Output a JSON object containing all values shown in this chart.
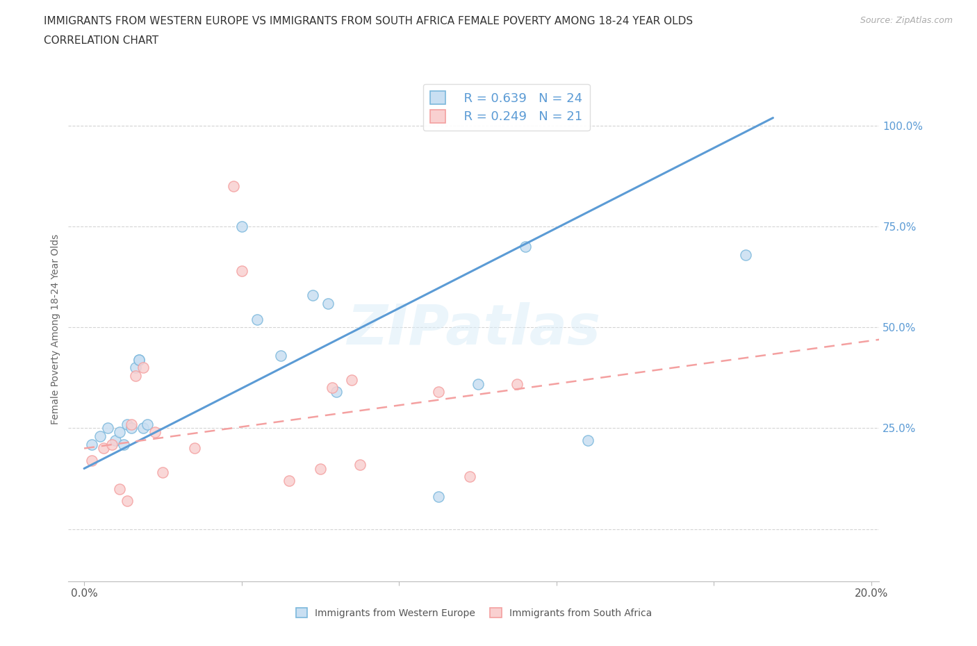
{
  "title_line1": "IMMIGRANTS FROM WESTERN EUROPE VS IMMIGRANTS FROM SOUTH AFRICA FEMALE POVERTY AMONG 18-24 YEAR OLDS",
  "title_line2": "CORRELATION CHART",
  "source": "Source: ZipAtlas.com",
  "ylabel": "Female Poverty Among 18-24 Year Olds",
  "watermark": "ZIPatlas",
  "legend_r1": "R = 0.639",
  "legend_n1": "N = 24",
  "legend_r2": "R = 0.249",
  "legend_n2": "N = 21",
  "xlim": [
    -0.004,
    0.202
  ],
  "ylim": [
    -0.13,
    1.12
  ],
  "xticks": [
    0.0,
    0.04,
    0.08,
    0.12,
    0.16,
    0.2
  ],
  "xticklabels": [
    "0.0%",
    "",
    "",
    "",
    "",
    "20.0%"
  ],
  "yticks": [
    0.0,
    0.25,
    0.5,
    0.75,
    1.0
  ],
  "yticklabels": [
    "",
    "25.0%",
    "50.0%",
    "75.0%",
    "100.0%"
  ],
  "blue_scatter_x": [
    0.002,
    0.004,
    0.006,
    0.008,
    0.009,
    0.01,
    0.011,
    0.012,
    0.013,
    0.014,
    0.014,
    0.015,
    0.016,
    0.04,
    0.044,
    0.05,
    0.058,
    0.062,
    0.064,
    0.09,
    0.1,
    0.112,
    0.128,
    0.168
  ],
  "blue_scatter_y": [
    0.21,
    0.23,
    0.25,
    0.22,
    0.24,
    0.21,
    0.26,
    0.25,
    0.4,
    0.42,
    0.42,
    0.25,
    0.26,
    0.75,
    0.52,
    0.43,
    0.58,
    0.56,
    0.34,
    0.08,
    0.36,
    0.7,
    0.22,
    0.68
  ],
  "pink_scatter_x": [
    0.002,
    0.005,
    0.007,
    0.009,
    0.011,
    0.012,
    0.013,
    0.015,
    0.018,
    0.02,
    0.028,
    0.038,
    0.04,
    0.052,
    0.06,
    0.063,
    0.068,
    0.07,
    0.09,
    0.098,
    0.11
  ],
  "pink_scatter_y": [
    0.17,
    0.2,
    0.21,
    0.1,
    0.07,
    0.26,
    0.38,
    0.4,
    0.24,
    0.14,
    0.2,
    0.85,
    0.64,
    0.12,
    0.15,
    0.35,
    0.37,
    0.16,
    0.34,
    0.13,
    0.36
  ],
  "blue_line_x": [
    0.0,
    0.175
  ],
  "blue_line_y": [
    0.15,
    1.02
  ],
  "pink_line_x": [
    0.0,
    0.202
  ],
  "pink_line_y": [
    0.2,
    0.47
  ],
  "blue_color": "#7bb8dc",
  "blue_color_dark": "#5b9bd5",
  "pink_color": "#f4a0a0",
  "pink_color_dark": "#e87878",
  "blue_fill": "#c9dff2",
  "pink_fill": "#f9d0d0",
  "scatter_size": 120,
  "title_fontsize": 11,
  "axis_label_fontsize": 10,
  "tick_fontsize": 11,
  "legend_fontsize": 13,
  "bg_color": "#ffffff",
  "grid_color": "#d0d0d0",
  "legend_label1": "Immigrants from Western Europe",
  "legend_label2": "Immigrants from South Africa"
}
